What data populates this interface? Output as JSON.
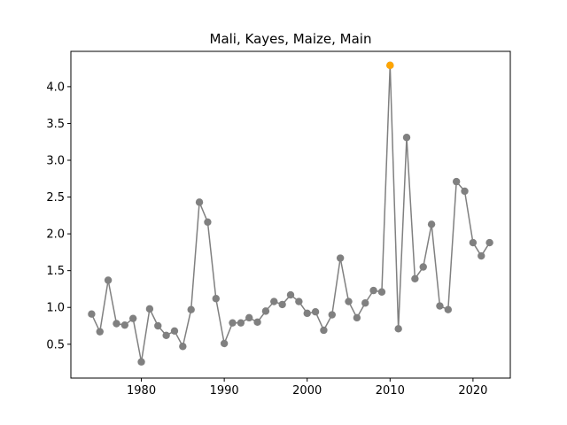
{
  "chart_data": {
    "type": "line",
    "title": "Mali, Kayes, Maize, Main",
    "xlabel": "",
    "ylabel": "",
    "xlim": [
      1971.5,
      2024.5
    ],
    "ylim": [
      0.04,
      4.48
    ],
    "x_ticks": [
      1980,
      1990,
      2000,
      2010,
      2020
    ],
    "y_ticks": [
      0.5,
      1.0,
      1.5,
      2.0,
      2.5,
      3.0,
      3.5,
      4.0
    ],
    "y_tick_labels": [
      "0.5",
      "1.0",
      "1.5",
      "2.0",
      "2.5",
      "3.0",
      "3.5",
      "4.0"
    ],
    "grid": false,
    "colors": {
      "line": "#808080",
      "marker": "#808080",
      "highlight": "#ffa500"
    },
    "series": [
      {
        "x": [
          1974,
          1975,
          1976,
          1977,
          1978,
          1979,
          1980,
          1981,
          1982,
          1983,
          1984,
          1985,
          1986,
          1987,
          1988,
          1989,
          1990,
          1991,
          1992,
          1993,
          1994,
          1995,
          1996,
          1997,
          1998,
          1999,
          2000,
          2001,
          2002,
          2003,
          2004,
          2005,
          2006,
          2007,
          2008,
          2009,
          2010,
          2011,
          2012,
          2013,
          2014,
          2015,
          2016,
          2017,
          2018,
          2019,
          2020,
          2021,
          2022
        ],
        "values": [
          0.91,
          0.67,
          1.37,
          0.78,
          0.76,
          0.85,
          0.26,
          0.98,
          0.75,
          0.62,
          0.68,
          0.47,
          0.97,
          2.43,
          2.16,
          1.12,
          0.51,
          0.79,
          0.79,
          0.86,
          0.8,
          0.95,
          1.08,
          1.04,
          1.17,
          1.08,
          0.92,
          0.94,
          0.69,
          0.9,
          1.67,
          1.08,
          0.86,
          1.06,
          1.23,
          1.21,
          4.29,
          0.71,
          3.31,
          1.39,
          1.55,
          2.13,
          1.02,
          0.97,
          2.71,
          2.58,
          1.88,
          1.7,
          1.88
        ]
      }
    ],
    "highlight_points": [
      {
        "x": 2010,
        "y": 4.29
      }
    ]
  }
}
